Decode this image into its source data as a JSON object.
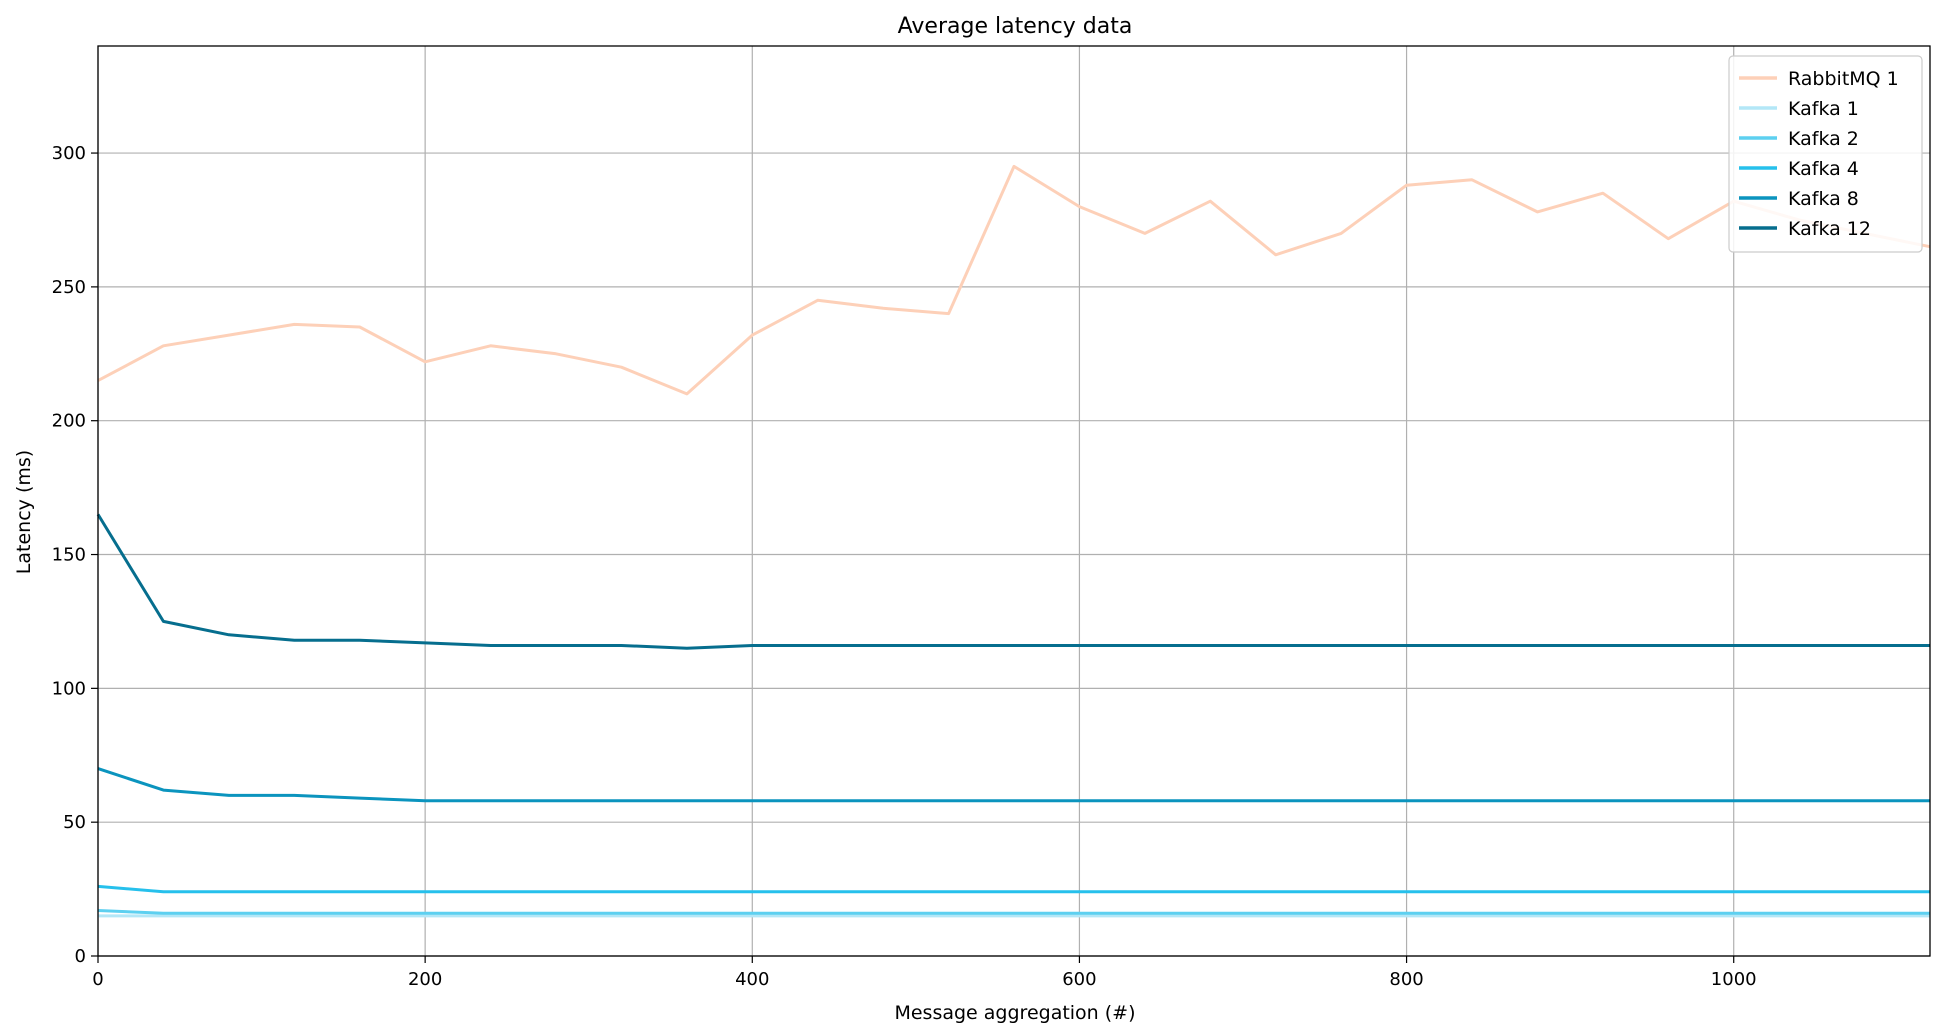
{
  "chart_data": {
    "type": "line",
    "title": "Average latency data",
    "xlabel": "Message aggregation (#)",
    "ylabel": "Latency (ms)",
    "xlim": [
      0,
      1120
    ],
    "ylim": [
      0,
      340
    ],
    "xticks": [
      0,
      200,
      400,
      600,
      800,
      1000
    ],
    "yticks": [
      0,
      50,
      100,
      150,
      200,
      250,
      300
    ],
    "grid": true,
    "legend_position": "top-right",
    "x": [
      0,
      40,
      80,
      120,
      160,
      200,
      240,
      280,
      320,
      360,
      400,
      440,
      480,
      520,
      560,
      600,
      640,
      680,
      720,
      760,
      800,
      840,
      880,
      920,
      960,
      1000,
      1040,
      1080,
      1120
    ],
    "series": [
      {
        "name": "RabbitMQ 1",
        "color": "#fdd0b8",
        "values": [
          215,
          228,
          232,
          236,
          235,
          222,
          228,
          225,
          220,
          210,
          232,
          245,
          242,
          240,
          295,
          280,
          270,
          282,
          262,
          270,
          288,
          290,
          278,
          285,
          268,
          282,
          275,
          270,
          265
        ]
      },
      {
        "name": "Kafka 1",
        "color": "#b3e7f7",
        "values": [
          15,
          15,
          15,
          15,
          15,
          15,
          15,
          15,
          15,
          15,
          15,
          15,
          15,
          15,
          15,
          15,
          15,
          15,
          15,
          15,
          15,
          15,
          15,
          15,
          15,
          15,
          15,
          15,
          15
        ]
      },
      {
        "name": "Kafka 2",
        "color": "#5dd0f0",
        "values": [
          17,
          16,
          16,
          16,
          16,
          16,
          16,
          16,
          16,
          16,
          16,
          16,
          16,
          16,
          16,
          16,
          16,
          16,
          16,
          16,
          16,
          16,
          16,
          16,
          16,
          16,
          16,
          16,
          16
        ]
      },
      {
        "name": "Kafka 4",
        "color": "#26c0ec",
        "values": [
          26,
          24,
          24,
          24,
          24,
          24,
          24,
          24,
          24,
          24,
          24,
          24,
          24,
          24,
          24,
          24,
          24,
          24,
          24,
          24,
          24,
          24,
          24,
          24,
          24,
          24,
          24,
          24,
          24
        ]
      },
      {
        "name": "Kafka 8",
        "color": "#0b94be",
        "values": [
          70,
          62,
          60,
          60,
          59,
          58,
          58,
          58,
          58,
          58,
          58,
          58,
          58,
          58,
          58,
          58,
          58,
          58,
          58,
          58,
          58,
          58,
          58,
          58,
          58,
          58,
          58,
          58,
          58
        ]
      },
      {
        "name": "Kafka 12",
        "color": "#066e8e",
        "values": [
          165,
          125,
          120,
          118,
          118,
          117,
          116,
          116,
          116,
          115,
          116,
          116,
          116,
          116,
          116,
          116,
          116,
          116,
          116,
          116,
          116,
          116,
          116,
          116,
          116,
          116,
          116,
          116,
          116
        ]
      }
    ]
  }
}
